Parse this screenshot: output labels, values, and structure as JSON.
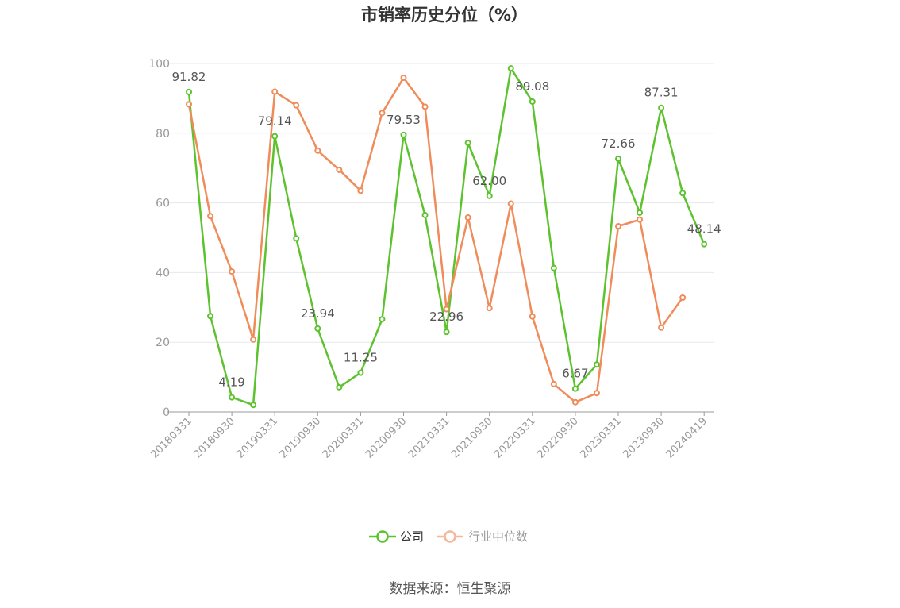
{
  "chart_data": {
    "type": "line",
    "title": "市销率历史分位（%）",
    "source": "数据来源：恒生聚源",
    "ylim": [
      0,
      100
    ],
    "yticks": [
      0,
      20,
      40,
      60,
      80,
      100
    ],
    "grid": true,
    "legend_position": "bottom",
    "x_tick_labels": [
      "20180331",
      "20180930",
      "20190331",
      "20190930",
      "20200331",
      "20200930",
      "20210331",
      "20210930",
      "20220331",
      "20220930",
      "20230331",
      "20230930",
      "20240419"
    ],
    "x": [
      "20180331",
      "20180630",
      "20180930",
      "20181231",
      "20190331",
      "20190630",
      "20190930",
      "20191231",
      "20200331",
      "20200630",
      "20200930",
      "20201231",
      "20210331",
      "20210630",
      "20210930",
      "20211231",
      "20220331",
      "20220630",
      "20220930",
      "20221231",
      "20230331",
      "20230630",
      "20230930",
      "20231231",
      "20240419"
    ],
    "series": [
      {
        "name": "公司",
        "color": "#5cc22d",
        "values": [
          91.82,
          27.5,
          4.19,
          2.0,
          79.14,
          49.8,
          23.94,
          7.1,
          11.25,
          26.6,
          79.53,
          56.5,
          22.96,
          77.2,
          62.0,
          98.6,
          89.08,
          41.3,
          6.67,
          13.6,
          72.66,
          57.2,
          87.31,
          62.8,
          48.14
        ],
        "labels": {
          "0": "91.82",
          "2": "4.19",
          "4": "79.14",
          "6": "23.94",
          "8": "11.25",
          "10": "79.53",
          "12": "22.96",
          "14": "62.00",
          "16": "89.08",
          "18": "6.67",
          "20": "72.66",
          "22": "87.31",
          "24": "48.14"
        }
      },
      {
        "name": "行业中位数",
        "color": "#f08b5a",
        "values": [
          88.3,
          56.2,
          40.3,
          20.8,
          91.9,
          88.0,
          75.0,
          69.5,
          63.5,
          85.8,
          95.9,
          87.6,
          29.5,
          55.8,
          29.8,
          59.8,
          27.4,
          8.0,
          2.8,
          5.4,
          53.3,
          55.2,
          24.2,
          32.8,
          null
        ]
      }
    ]
  }
}
